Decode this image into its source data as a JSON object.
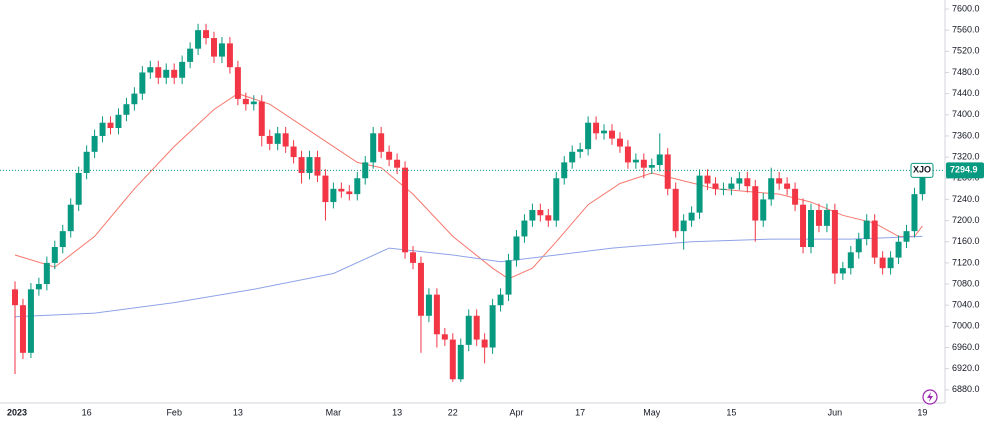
{
  "chart_data": {
    "type": "candlestick",
    "symbol": "XJO",
    "up_color": "#089981",
    "down_color": "#f23645",
    "categories": [
      "2023",
      null,
      null,
      null,
      null,
      null,
      null,
      null,
      null,
      "16",
      null,
      null,
      null,
      null,
      null,
      null,
      null,
      null,
      null,
      null,
      "Feb",
      null,
      null,
      null,
      null,
      null,
      null,
      null,
      "13",
      null,
      null,
      null,
      null,
      null,
      null,
      null,
      null,
      null,
      null,
      null,
      "Mar",
      null,
      null,
      null,
      null,
      null,
      null,
      null,
      "13",
      null,
      null,
      null,
      null,
      null,
      null,
      "22",
      null,
      null,
      null,
      null,
      null,
      null,
      null,
      "Apr",
      null,
      null,
      null,
      null,
      null,
      null,
      null,
      "17",
      null,
      null,
      null,
      null,
      null,
      null,
      null,
      null,
      "May",
      null,
      null,
      null,
      null,
      null,
      null,
      null,
      null,
      null,
      "15",
      null,
      null,
      null,
      null,
      null,
      null,
      null,
      null,
      null,
      null,
      null,
      null,
      "Jun",
      null,
      null,
      null,
      null,
      null,
      null,
      null,
      null,
      null,
      null,
      "19"
    ],
    "open": [
      7070,
      7040,
      6950,
      7070,
      7080,
      7120,
      7150,
      7180,
      7230,
      7290,
      7330,
      7360,
      7385,
      7375,
      7400,
      7420,
      7440,
      7480,
      7490,
      7470,
      7485,
      7470,
      7500,
      7525,
      7560,
      7545,
      7510,
      7535,
      7490,
      7430,
      7420,
      7425,
      7360,
      7345,
      7365,
      7340,
      7320,
      7290,
      7320,
      7285,
      7235,
      7260,
      7255,
      7250,
      7280,
      7310,
      7365,
      7330,
      7315,
      7300,
      7140,
      7120,
      7020,
      7060,
      6985,
      6975,
      6900,
      6965,
      7020,
      6975,
      6960,
      7040,
      7060,
      7125,
      7170,
      7200,
      7220,
      7210,
      7200,
      7280,
      7310,
      7330,
      7335,
      7385,
      7365,
      7370,
      7355,
      7340,
      7310,
      7315,
      7300,
      7305,
      7325,
      7260,
      7180,
      7200,
      7215,
      7285,
      7270,
      7260,
      7260,
      7270,
      7280,
      7265,
      7200,
      7240,
      7280,
      7270,
      7260,
      7230,
      7150,
      7220,
      7190,
      7220,
      7100,
      7110,
      7140,
      7165,
      7200,
      7130,
      7110,
      7130,
      7160,
      7180,
      7250
    ],
    "high": [
      7085,
      7052,
      7082,
      7092,
      7132,
      7162,
      7192,
      7242,
      7302,
      7342,
      7372,
      7397,
      7397,
      7412,
      7432,
      7452,
      7492,
      7502,
      7502,
      7497,
      7497,
      7512,
      7537,
      7572,
      7572,
      7557,
      7547,
      7547,
      7502,
      7442,
      7437,
      7437,
      7372,
      7377,
      7377,
      7352,
      7332,
      7332,
      7332,
      7297,
      7272,
      7272,
      7267,
      7292,
      7322,
      7377,
      7377,
      7342,
      7327,
      7312,
      7152,
      7132,
      7072,
      7072,
      6997,
      6987,
      6977,
      7032,
      7032,
      6987,
      7052,
      7072,
      7137,
      7182,
      7212,
      7232,
      7232,
      7222,
      7292,
      7322,
      7342,
      7347,
      7397,
      7397,
      7382,
      7382,
      7367,
      7352,
      7327,
      7327,
      7317,
      7365,
      7337,
      7272,
      7212,
      7227,
      7297,
      7297,
      7282,
      7272,
      7282,
      7292,
      7292,
      7277,
      7252,
      7300,
      7292,
      7282,
      7272,
      7242,
      7232,
      7232,
      7232,
      7232,
      7122,
      7152,
      7177,
      7212,
      7212,
      7142,
      7142,
      7172,
      7192,
      7262,
      7305
    ],
    "low": [
      6910,
      6938,
      6940,
      7058,
      7068,
      7108,
      7138,
      7168,
      7218,
      7278,
      7318,
      7348,
      7363,
      7363,
      7388,
      7408,
      7428,
      7468,
      7458,
      7458,
      7458,
      7458,
      7488,
      7513,
      7533,
      7498,
      7498,
      7478,
      7418,
      7408,
      7408,
      7340,
      7333,
      7333,
      7328,
      7308,
      7270,
      7278,
      7273,
      7200,
      7223,
      7243,
      7238,
      7238,
      7268,
      7298,
      7318,
      7303,
      7288,
      7128,
      7108,
      6950,
      7008,
      6960,
      6963,
      6895,
      6895,
      6953,
      6963,
      6930,
      6948,
      7028,
      7048,
      7113,
      7158,
      7188,
      7198,
      7188,
      7188,
      7268,
      7298,
      7318,
      7323,
      7353,
      7353,
      7343,
      7328,
      7298,
      7298,
      7280,
      7288,
      7293,
      7248,
      7168,
      7145,
      7188,
      7203,
      7258,
      7248,
      7248,
      7248,
      7258,
      7253,
      7160,
      7188,
      7228,
      7258,
      7248,
      7218,
      7138,
      7138,
      7178,
      7178,
      7080,
      7088,
      7098,
      7128,
      7153,
      7118,
      7098,
      7098,
      7118,
      7148,
      7168,
      7238
    ],
    "close": [
      7040,
      6950,
      7070,
      7080,
      7120,
      7150,
      7180,
      7230,
      7290,
      7330,
      7360,
      7385,
      7375,
      7400,
      7420,
      7440,
      7480,
      7490,
      7470,
      7485,
      7470,
      7500,
      7525,
      7560,
      7545,
      7510,
      7535,
      7490,
      7430,
      7420,
      7425,
      7360,
      7345,
      7365,
      7340,
      7320,
      7290,
      7320,
      7285,
      7235,
      7260,
      7255,
      7250,
      7280,
      7310,
      7365,
      7330,
      7315,
      7300,
      7140,
      7120,
      7020,
      7060,
      6985,
      6975,
      6900,
      6965,
      7020,
      6975,
      6960,
      7040,
      7060,
      7125,
      7170,
      7200,
      7220,
      7210,
      7200,
      7280,
      7310,
      7330,
      7335,
      7385,
      7365,
      7370,
      7355,
      7340,
      7310,
      7315,
      7300,
      7305,
      7325,
      7260,
      7180,
      7200,
      7215,
      7285,
      7270,
      7260,
      7260,
      7270,
      7280,
      7265,
      7200,
      7240,
      7280,
      7270,
      7260,
      7230,
      7150,
      7220,
      7190,
      7220,
      7100,
      7110,
      7140,
      7165,
      7200,
      7130,
      7110,
      7130,
      7160,
      7180,
      7250,
      7294.9
    ],
    "moving_averages": [
      {
        "color": "#f7776d",
        "x": [
          0,
          5,
          10,
          15,
          20,
          25,
          28,
          32,
          38,
          43,
          46,
          50,
          55,
          60,
          62,
          65,
          68,
          72,
          76,
          80,
          84,
          88,
          92,
          96,
          100,
          104,
          108,
          111,
          113,
          114
        ],
        "values": [
          7135,
          7112,
          7170,
          7260,
          7340,
          7410,
          7440,
          7420,
          7360,
          7310,
          7300,
          7250,
          7170,
          7110,
          7090,
          7110,
          7160,
          7230,
          7270,
          7290,
          7275,
          7260,
          7255,
          7250,
          7235,
          7210,
          7195,
          7170,
          7170,
          7190
        ]
      },
      {
        "color": "#8ea3e8",
        "x": [
          0,
          10,
          20,
          30,
          40,
          47,
          55,
          61,
          68,
          75,
          85,
          95,
          105,
          114
        ],
        "values": [
          7018,
          7025,
          7045,
          7070,
          7100,
          7148,
          7135,
          7122,
          7135,
          7148,
          7160,
          7165,
          7165,
          7170
        ]
      }
    ],
    "ylim": [
      6857,
      7617
    ],
    "yticks": [
      {
        "value": 6880,
        "label": "6880.0"
      },
      {
        "value": 6920,
        "label": "6920.0"
      },
      {
        "value": 6960,
        "label": "6960.0"
      },
      {
        "value": 7000,
        "label": "7000.0"
      },
      {
        "value": 7040,
        "label": "7040.0"
      },
      {
        "value": 7080,
        "label": "7080.0"
      },
      {
        "value": 7120,
        "label": "7120.0"
      },
      {
        "value": 7160,
        "label": "7160.0"
      },
      {
        "value": 7200,
        "label": "7200.0"
      },
      {
        "value": 7240,
        "label": "7240.0"
      },
      {
        "value": 7280,
        "label": "7280.0"
      },
      {
        "value": 7320,
        "label": "7320.0"
      },
      {
        "value": 7360,
        "label": "7360.0"
      },
      {
        "value": 7400,
        "label": "7400.0"
      },
      {
        "value": 7440,
        "label": "7440.0"
      },
      {
        "value": 7480,
        "label": "7480.0"
      },
      {
        "value": 7520,
        "label": "7520.0"
      },
      {
        "value": 7560,
        "label": "7560.0"
      },
      {
        "value": 7600,
        "label": "7600.0"
      }
    ]
  }
}
